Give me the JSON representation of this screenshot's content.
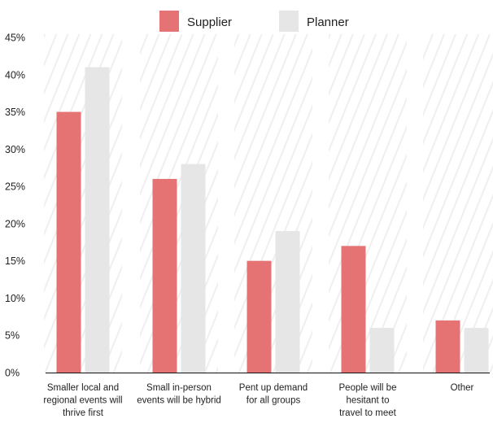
{
  "chart_data": {
    "type": "bar",
    "categories": [
      [
        "Smaller local and",
        "regional events will",
        "thrive first"
      ],
      [
        "Small in-person",
        "events will be hybrid"
      ],
      [
        "Pent up demand",
        "for all groups"
      ],
      [
        "People will be",
        "hesitant to",
        "travel to meet"
      ],
      [
        "Other"
      ]
    ],
    "series": [
      {
        "name": "Supplier",
        "color": "#E57373",
        "values": [
          35,
          26,
          15,
          17,
          7
        ]
      },
      {
        "name": "Planner",
        "color": "#E6E6E6",
        "values": [
          41,
          28,
          19,
          6,
          6
        ]
      }
    ],
    "ylim": [
      0,
      45
    ],
    "yticks": [
      "0%",
      "5%",
      "10%",
      "15%",
      "20%",
      "25%",
      "30%",
      "35%",
      "40%",
      "45%"
    ],
    "legend_position": "top-center",
    "background_pattern": "diagonal-hatch",
    "hatch_color": "#EFEFEF"
  }
}
